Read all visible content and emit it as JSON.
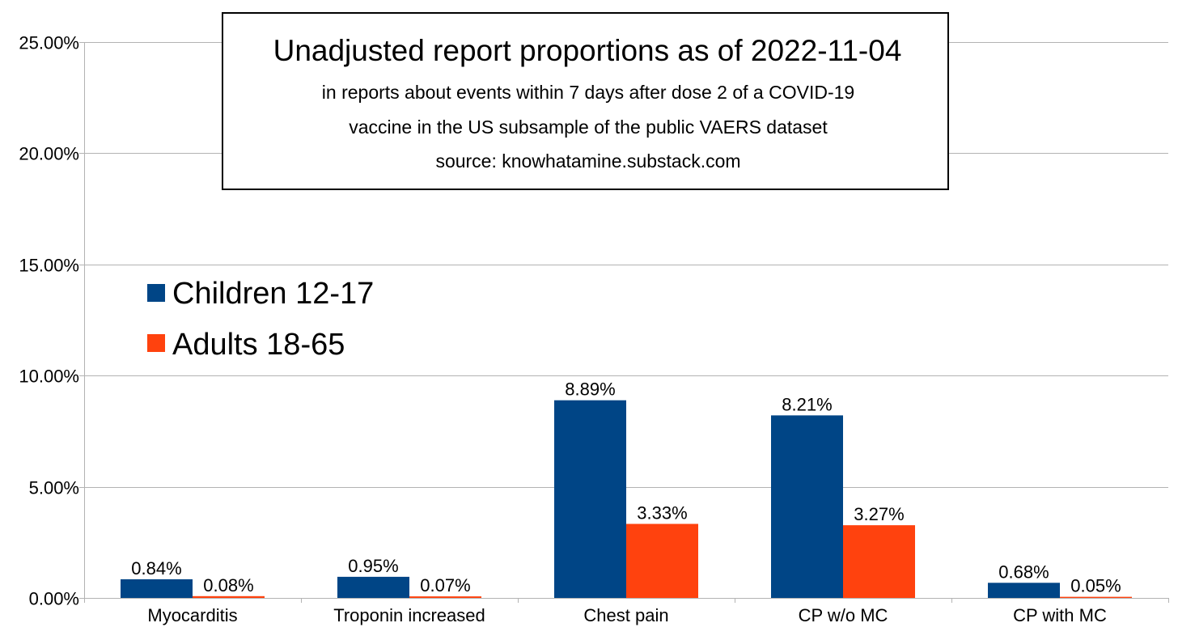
{
  "chart_data": {
    "type": "bar",
    "title": "Unadjusted report proportions as of 2022-11-04",
    "subtitle_lines": [
      "in reports about events within 7 days after dose 2 of a COVID-19",
      "vaccine in the US subsample of the public VAERS dataset",
      "source: knowhatamine.substack.com"
    ],
    "categories": [
      "Myocarditis",
      "Troponin increased",
      "Chest pain",
      "CP w/o MC",
      "CP with MC"
    ],
    "series": [
      {
        "name": "Children 12-17",
        "color": "#004586",
        "values": [
          0.84,
          0.95,
          8.89,
          8.21,
          0.68
        ],
        "labels": [
          "0.84%",
          "0.95%",
          "8.89%",
          "8.21%",
          "0.68%"
        ]
      },
      {
        "name": "Adults 18-65",
        "color": "#ff420e",
        "values": [
          0.08,
          0.07,
          3.33,
          3.27,
          0.05
        ],
        "labels": [
          "0.08%",
          "0.07%",
          "3.33%",
          "3.27%",
          "0.05%"
        ]
      }
    ],
    "ylim": [
      0,
      25
    ],
    "yticks": [
      0,
      5,
      10,
      15,
      20,
      25
    ],
    "ytick_labels": [
      "0.00%",
      "5.00%",
      "10.00%",
      "15.00%",
      "20.00%",
      "25.00%"
    ],
    "xlabel": "",
    "ylabel": "",
    "grid": true,
    "legend_position": "left"
  }
}
